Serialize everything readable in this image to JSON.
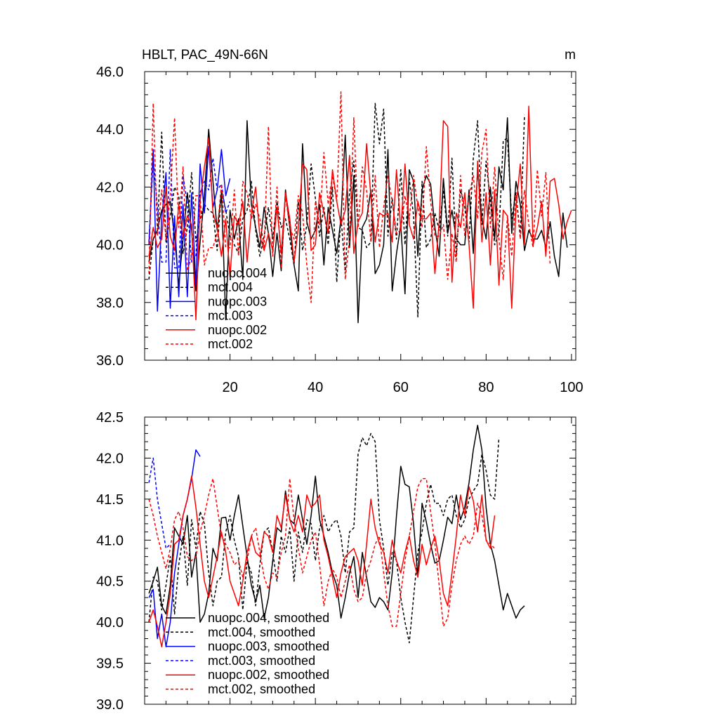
{
  "chart_data": [
    {
      "type": "line",
      "title": "HBLT, PAC_49N-66N",
      "units": "m",
      "xlim": [
        0,
        101
      ],
      "ylim": [
        36,
        46
      ],
      "xticks": [
        "20",
        "40",
        "60",
        "80",
        "100"
      ],
      "yticks": [
        "36.0",
        "38.0",
        "40.0",
        "42.0",
        "44.0",
        "46.0"
      ],
      "legend_position": "bottom-left",
      "series": [
        {
          "name": "nuopc.004",
          "color": "#000000",
          "dash": "solid",
          "x_start": 1,
          "values": [
            39.4,
            40.2,
            40.5,
            41.2,
            41.4,
            41.5,
            40.3,
            38.6,
            40.2,
            41.8,
            40.5,
            38.4,
            40.1,
            41.7,
            44.0,
            42.2,
            40.5,
            41.8,
            37.4,
            41.2,
            40.2,
            40.9,
            38.8,
            44.3,
            41.4,
            40.6,
            39.9,
            41.3,
            40.4,
            38.9,
            40.4,
            39.1,
            41.9,
            40.6,
            39.3,
            38.4,
            43.5,
            40.8,
            40.2,
            40.5,
            41.4,
            39.3,
            41.3,
            40.5,
            39.7,
            40.9,
            43.8,
            39.9,
            42.4,
            37.3,
            40.6,
            40.9,
            41.9,
            39.0,
            39.3,
            40.0,
            43.3,
            38.4,
            39.7,
            40.7,
            38.3,
            42.6,
            42.2,
            39.6,
            41.9,
            42.4,
            42.1,
            40.6,
            39.6,
            42.3,
            40.4,
            41.2,
            40.2,
            40.0,
            40.0,
            41.9,
            39.7,
            42.6,
            40.9,
            40.2,
            42.0,
            40.2,
            42.7,
            41.9,
            44.4,
            40.4,
            42.2,
            41.4,
            39.8,
            40.5,
            40.2,
            40.2,
            40.5,
            39.9,
            40.8,
            39.6,
            38.9,
            41.1,
            39.9
          ]
        },
        {
          "name": "mct.004",
          "color": "#000000",
          "dash": "dashed",
          "x_start": 1,
          "values": [
            38.8,
            40.2,
            40.5,
            43.9,
            40.1,
            41.0,
            42.0,
            41.7,
            39.7,
            40.6,
            42.5,
            40.1,
            40.9,
            41.4,
            41.2,
            41.1,
            39.8,
            41.9,
            41.2,
            40.3,
            40.0,
            39.7,
            40.9,
            41.2,
            42.2,
            40.5,
            39.6,
            40.3,
            41.3,
            40.2,
            41.5,
            40.6,
            40.9,
            40.2,
            39.3,
            41.5,
            39.8,
            40.7,
            42.8,
            41.6,
            40.3,
            41.3,
            40.0,
            42.0,
            38.7,
            41.0,
            39.0,
            41.8,
            42.9,
            40.6,
            40.5,
            39.9,
            40.1,
            44.9,
            43.5,
            44.7,
            40.3,
            41.6,
            40.2,
            42.6,
            40.0,
            42.3,
            41.0,
            37.5,
            42.2,
            39.9,
            40.2,
            41.1,
            40.5,
            41.9,
            40.3,
            43.0,
            39.6,
            41.9,
            41.3,
            40.1,
            43.0,
            44.3,
            40.7,
            42.9,
            41.5,
            40.0,
            40.4,
            43.6,
            43.7,
            40.9,
            41.8,
            40.3,
            44.5
          ]
        },
        {
          "name": "nuopc.003",
          "color": "#0000ff",
          "dash": "solid",
          "x_start": 1,
          "values": [
            40.0,
            43.3,
            37.7,
            40.9,
            42.5,
            37.8,
            41.0,
            38.2,
            41.4,
            38.2,
            41.8,
            38.6,
            42.8,
            41.1,
            43.4,
            41.3,
            41.9,
            43.3,
            41.7,
            42.3
          ]
        },
        {
          "name": "mct.003",
          "color": "#0000ff",
          "dash": "dashed",
          "x_start": 1,
          "values": [
            40.1,
            43.0,
            41.3,
            39.4,
            39.4,
            43.3,
            39.2,
            39.2,
            42.4,
            41.4,
            39.4,
            39.6,
            41.8,
            42.2,
            41.9,
            43.0,
            41.9,
            42.1,
            41.1,
            41.5
          ]
        },
        {
          "name": "nuopc.002",
          "color": "#ff0000",
          "dash": "solid",
          "x_start": 1,
          "values": [
            39.6,
            40.6,
            39.9,
            40.2,
            42.0,
            40.3,
            39.8,
            41.4,
            40.3,
            41.0,
            40.7,
            37.4,
            41.5,
            42.7,
            43.7,
            41.1,
            40.6,
            39.6,
            40.9,
            38.9,
            41.0,
            40.7,
            41.5,
            39.4,
            41.1,
            42.0,
            40.3,
            39.8,
            40.4,
            39.8,
            41.3,
            39.7,
            41.8,
            40.9,
            39.4,
            40.6,
            42.8,
            42.6,
            39.8,
            40.0,
            41.8,
            41.1,
            40.4,
            42.6,
            41.5,
            40.7,
            41.2,
            43.1,
            39.7,
            40.8,
            41.1,
            43.5,
            41.7,
            40.1,
            41.1,
            41.0,
            41.1,
            40.1,
            42.6,
            40.5,
            42.8,
            40.7,
            40.2,
            41.5,
            40.9,
            40.9,
            41.1,
            39.0,
            40.8,
            44.3,
            44.1,
            38.7,
            41.1,
            40.6,
            41.8,
            40.0,
            37.8,
            42.9,
            40.1,
            41.8,
            39.3,
            41.9,
            38.6,
            41.2,
            41.0,
            37.8,
            41.3,
            42.8,
            40.0,
            44.8,
            40.0,
            40.6,
            41.5,
            39.6,
            42.2,
            42.3,
            41.4,
            40.2,
            40.8,
            41.2
          ]
        },
        {
          "name": "mct.002",
          "color": "#ff0000",
          "dash": "dashed",
          "x_start": 1,
          "values": [
            39.0,
            44.9,
            40.3,
            41.9,
            40.2,
            41.7,
            44.4,
            40.6,
            42.7,
            39.1,
            39.6,
            41.7,
            41.7,
            39.3,
            39.9,
            39.9,
            40.4,
            42.1,
            39.9,
            39.9,
            41.9,
            39.6,
            42.2,
            41.8,
            40.9,
            41.4,
            40.9,
            39.9,
            44.1,
            39.6,
            42.0,
            39.2,
            41.7,
            40.6,
            40.2,
            41.7,
            41.1,
            39.3,
            38.0,
            41.5,
            40.7,
            43.2,
            41.4,
            42.4,
            41.5,
            45.3,
            38.8,
            40.2,
            44.4,
            40.6,
            42.7,
            41.9,
            40.1,
            42.4,
            39.9,
            41.3,
            42.4,
            41.5,
            40.4,
            40.5,
            41.7,
            40.9,
            42.4,
            41.3,
            40.6,
            43.4,
            41.5,
            40.3,
            40.3,
            40.7,
            38.8,
            40.4,
            39.4,
            42.4,
            40.3,
            41.7,
            42.4,
            40.9,
            43.2,
            44.0,
            40.6,
            42.7,
            40.2,
            38.8,
            41.0,
            39.6,
            41.7,
            40.2,
            41.9,
            40.7,
            39.9,
            42.6,
            41.0,
            42.5,
            39.3
          ]
        }
      ]
    },
    {
      "type": "line",
      "title": "",
      "xlim": [
        0,
        101
      ],
      "ylim": [
        39,
        42.5
      ],
      "yticks": [
        "39.0",
        "39.5",
        "40.0",
        "40.5",
        "41.0",
        "41.5",
        "42.0",
        "42.5"
      ],
      "legend_position": "bottom-left",
      "series": [
        {
          "name": "nuopc.004, smoothed",
          "color": "#000000",
          "dash": "solid",
          "x_start": 1,
          "values": [
            40.35,
            40.5,
            40.67,
            40.2,
            40.1,
            40.45,
            41.15,
            41.05,
            40.95,
            41.3,
            40.55,
            40.85,
            40.0,
            40.1,
            40.35,
            40.9,
            40.75,
            41.27,
            41.28,
            41.0,
            41.3,
            41.55,
            41.17,
            40.8,
            40.45,
            40.25,
            40.45,
            40.05,
            40.3,
            40.75,
            41.15,
            41.1,
            41.6,
            41.25,
            41.2,
            41.55,
            41.25,
            40.95,
            41.3,
            41.78,
            41.25,
            41.05,
            40.85,
            40.6,
            40.45,
            40.05,
            40.3,
            40.6,
            40.8,
            40.3,
            40.85,
            40.55,
            40.25,
            40.18,
            40.3,
            40.25,
            40.15,
            40.6,
            41.3,
            41.9,
            41.68,
            41.65,
            41.2,
            40.55,
            41.45,
            41.22,
            40.95,
            40.72,
            40.75,
            41.0,
            41.28,
            41.2,
            41.55,
            41.25,
            41.4,
            41.7,
            42.1,
            42.4,
            42.1,
            41.4,
            40.95,
            40.75,
            40.45,
            40.15,
            40.35,
            40.2,
            40.05,
            40.15,
            40.2
          ]
        },
        {
          "name": "mct.004, smoothed",
          "color": "#000000",
          "dash": "dashed",
          "x_start": 1,
          "values": [
            40.0,
            40.55,
            40.5,
            40.15,
            40.45,
            40.8,
            40.1,
            40.7,
            41.05,
            40.45,
            41.25,
            40.9,
            41.35,
            41.2,
            40.6,
            40.2,
            40.5,
            40.55,
            41.1,
            41.3,
            41.0,
            40.8,
            40.15,
            40.75,
            40.6,
            40.2,
            40.7,
            41.1,
            41.15,
            40.85,
            40.5,
            41.05,
            40.85,
            41.15,
            40.5,
            41.1,
            40.85,
            41.25,
            41.2,
            40.75,
            41.15,
            41.3,
            41.1,
            41.2,
            41.25,
            41.05,
            40.6,
            41.1,
            41.15,
            42.05,
            42.25,
            42.15,
            42.3,
            42.2,
            41.25,
            40.9,
            40.45,
            40.85,
            40.75,
            40.3,
            40.0,
            39.75,
            40.3,
            40.85,
            41.1,
            41.45,
            41.68,
            41.45,
            41.45,
            41.3,
            41.5,
            41.55,
            41.3,
            41.15,
            41.25,
            41.5,
            41.6,
            41.68,
            42.05,
            41.85,
            41.55,
            41.5,
            42.25
          ]
        },
        {
          "name": "nuopc.003, smoothed",
          "color": "#0000ff",
          "dash": "solid",
          "x_start": 1,
          "values": [
            40.3,
            40.4,
            39.8,
            40.1,
            39.7,
            40.0,
            40.6,
            40.95,
            41.3,
            41.5,
            41.75,
            42.1,
            42.02
          ]
        },
        {
          "name": "mct.003, smoothed",
          "color": "#0000ff",
          "dash": "dashed",
          "x_start": 1,
          "values": [
            41.7,
            42.0,
            41.5,
            41.2,
            40.9,
            40.95
          ]
        },
        {
          "name": "nuopc.002, smoothed",
          "color": "#ff0000",
          "dash": "solid",
          "x_start": 1,
          "values": [
            40.0,
            40.15,
            39.95,
            39.7,
            40.0,
            40.35,
            40.95,
            41.0,
            41.3,
            41.5,
            41.78,
            41.4,
            40.95,
            40.5,
            40.3,
            40.55,
            40.8,
            41.1,
            40.85,
            40.5,
            40.35,
            40.2,
            40.5,
            40.85,
            41.05,
            40.85,
            40.8,
            41.1,
            41.05,
            40.85,
            41.3,
            41.15,
            41.55,
            41.25,
            41.1,
            41.3,
            41.1,
            41.55,
            41.4,
            41.45,
            41.55,
            41.0,
            40.8,
            40.55,
            40.3,
            40.6,
            40.8,
            40.85,
            40.9,
            40.75,
            40.45,
            40.95,
            41.5,
            41.15,
            40.95,
            40.85,
            40.6,
            41.0,
            40.75,
            40.6,
            40.85,
            41.05,
            40.75,
            40.55,
            40.95,
            40.7,
            40.9,
            41.05,
            40.75,
            40.35,
            40.2,
            40.6,
            41.05,
            41.55,
            41.3,
            41.65,
            41.48,
            41.1,
            41.55,
            41.0,
            40.9,
            41.3
          ]
        },
        {
          "name": "mct.002, smoothed",
          "color": "#ff0000",
          "dash": "dashed",
          "x_start": 1,
          "values": [
            41.5,
            41.3,
            41.05,
            40.85,
            40.65,
            40.9,
            41.25,
            41.35,
            41.15,
            40.8,
            40.75,
            40.8,
            41.1,
            41.3,
            41.55,
            41.75,
            41.4,
            41.05,
            40.95,
            40.85,
            40.7,
            40.75,
            40.55,
            40.75,
            41.05,
            41.15,
            40.85,
            40.55,
            40.4,
            40.6,
            40.55,
            40.85,
            41.05,
            41.75,
            41.25,
            40.9,
            40.6,
            40.8,
            41.0,
            41.1,
            40.7,
            40.2,
            40.5,
            40.65,
            40.55,
            40.3,
            40.5,
            40.7,
            40.4,
            40.25,
            40.3,
            40.6,
            40.75,
            40.95,
            41.05,
            40.6,
            40.2,
            39.95,
            39.95,
            40.35,
            40.75,
            41.05,
            41.35,
            41.65,
            41.75,
            41.75,
            41.35,
            40.95,
            40.45,
            39.95,
            40.05,
            40.45,
            40.75,
            40.95,
            41.05,
            40.95,
            41.05,
            41.45,
            41.3,
            41.0,
            40.95,
            40.9
          ]
        }
      ]
    }
  ]
}
